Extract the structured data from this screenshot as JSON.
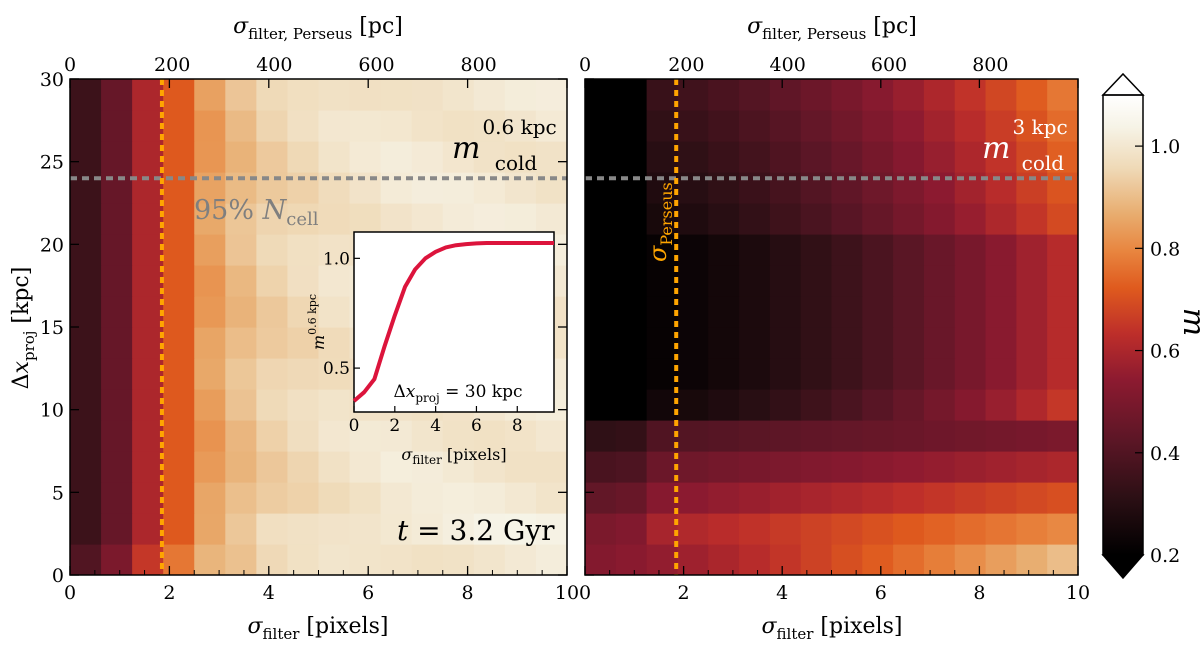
{
  "chart_data": [
    {
      "type": "heatmap",
      "panel": "left",
      "xlabel_bottom": "σfilter [pixels]",
      "xlabel_top": "σfilter, Perseus [pc]",
      "ylabel": "Δxproj [kpc]",
      "xlim": [
        0,
        10
      ],
      "ylim": [
        0,
        30
      ],
      "xticks": [
        0,
        2,
        4,
        6,
        8,
        10
      ],
      "top_xticks": [
        0,
        200,
        400,
        600,
        800
      ],
      "yticks": [
        0,
        5,
        10,
        15,
        20,
        25,
        30
      ],
      "x_bins": 16,
      "y_bins": 16,
      "annotation_quantity": "m",
      "annotation_subscript": "cold",
      "annotation_superscript": "0.6 kpc",
      "threshold_label": "95% Ncell",
      "threshold_y": 24,
      "perseus_x": 1.85,
      "time_label": "t = 3.2 Gyr",
      "column_values": [
        0.35,
        0.45,
        0.6,
        0.72,
        0.84,
        0.9,
        0.94,
        0.96,
        0.98,
        0.99,
        1.0,
        1.0,
        1.0,
        1.0,
        1.0,
        1.0
      ]
    },
    {
      "type": "heatmap",
      "panel": "right",
      "xlabel_bottom": "σfilter [pixels]",
      "xlabel_top": "σfilter, Perseus [pc]",
      "xlim": [
        0,
        10
      ],
      "ylim": [
        0,
        30
      ],
      "xticks": [
        0,
        2,
        4,
        6,
        8,
        10
      ],
      "top_xticks": [
        0,
        200,
        400,
        600,
        800
      ],
      "x_bins": 16,
      "y_bins": 16,
      "annotation_quantity": "m",
      "annotation_subscript": "cold",
      "annotation_superscript": "3 kpc",
      "perseus_label": "σPerseus",
      "perseus_x": 1.85,
      "threshold_y": 24
    },
    {
      "type": "line",
      "panel": "inset",
      "xlabel": "σfilter [pixels]",
      "ylabel": "m0.6 kpc",
      "xlim": [
        0,
        9.8
      ],
      "ylim": [
        0.3,
        1.12
      ],
      "xticks": [
        0,
        2,
        4,
        6,
        8
      ],
      "yticks": [
        0.5,
        1.0
      ],
      "annotation": "Δxproj = 30 kpc",
      "x": [
        0,
        0.5,
        1,
        1.5,
        2,
        2.5,
        3,
        3.5,
        4,
        4.5,
        5,
        5.5,
        6,
        6.5,
        7,
        7.5,
        8,
        8.5,
        9,
        9.5,
        9.8
      ],
      "y": [
        0.35,
        0.39,
        0.45,
        0.6,
        0.74,
        0.87,
        0.95,
        1.0,
        1.03,
        1.05,
        1.06,
        1.065,
        1.068,
        1.07,
        1.07,
        1.07,
        1.07,
        1.07,
        1.07,
        1.07,
        1.07
      ],
      "line_color": "#dc143c"
    },
    {
      "type": "colorbar",
      "label": "m",
      "vmin": 0.2,
      "vmax": 1.1,
      "ticks": [
        0.2,
        0.4,
        0.6,
        0.8,
        1.0
      ]
    }
  ]
}
